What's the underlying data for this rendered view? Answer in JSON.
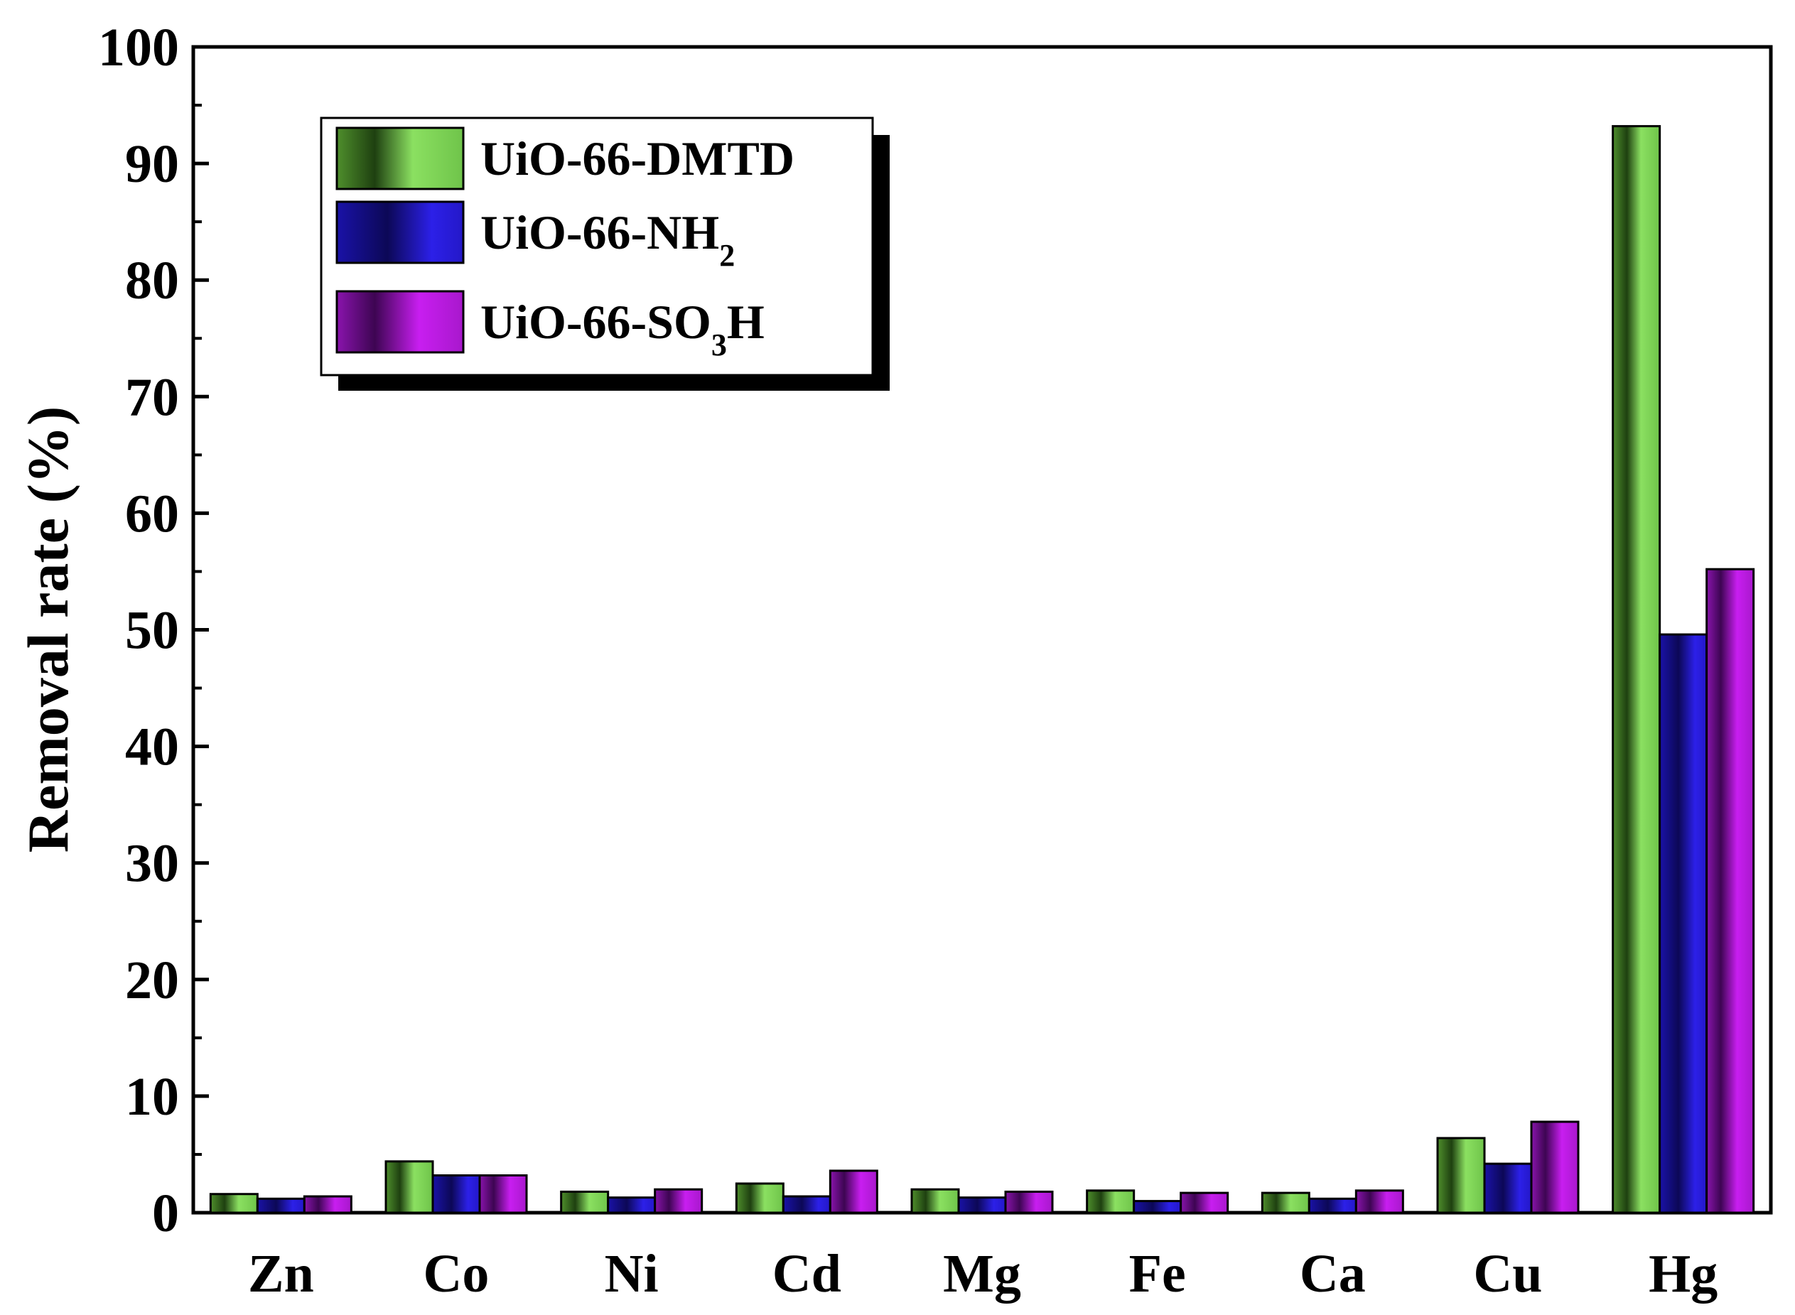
{
  "chart_data": {
    "type": "bar",
    "categories": [
      "Zn",
      "Co",
      "Ni",
      "Cd",
      "Mg",
      "Fe",
      "Ca",
      "Cu",
      "Hg"
    ],
    "series": [
      {
        "name": "UiO-66-DMTD",
        "label_main": "UiO-66-DMTD",
        "label_sub": "",
        "label_tail": "",
        "color": "#7ed957",
        "values": [
          1.6,
          4.4,
          1.8,
          2.5,
          2.0,
          1.9,
          1.7,
          6.4,
          93.2
        ]
      },
      {
        "name": "UiO-66-NH2",
        "label_main": "UiO-66-NH",
        "label_sub": "2",
        "label_tail": "",
        "color": "#2d1fd6",
        "values": [
          1.2,
          3.2,
          1.3,
          1.4,
          1.3,
          1.0,
          1.2,
          4.2,
          49.6
        ]
      },
      {
        "name": "UiO-66-SO3H",
        "label_main": "UiO-66-SO",
        "label_sub": "3",
        "label_tail": "H",
        "color": "#a018c8",
        "values": [
          1.4,
          3.2,
          2.0,
          3.6,
          1.8,
          1.7,
          1.9,
          7.8,
          55.2
        ]
      }
    ],
    "ylabel": "Removal rate (%)",
    "xlabel": "",
    "ylim": [
      0,
      100
    ],
    "yticks": [
      "0",
      "10",
      "20",
      "30",
      "40",
      "50",
      "60",
      "70",
      "80",
      "90",
      "100"
    ],
    "legend_position": "top-left",
    "grid": false
  }
}
